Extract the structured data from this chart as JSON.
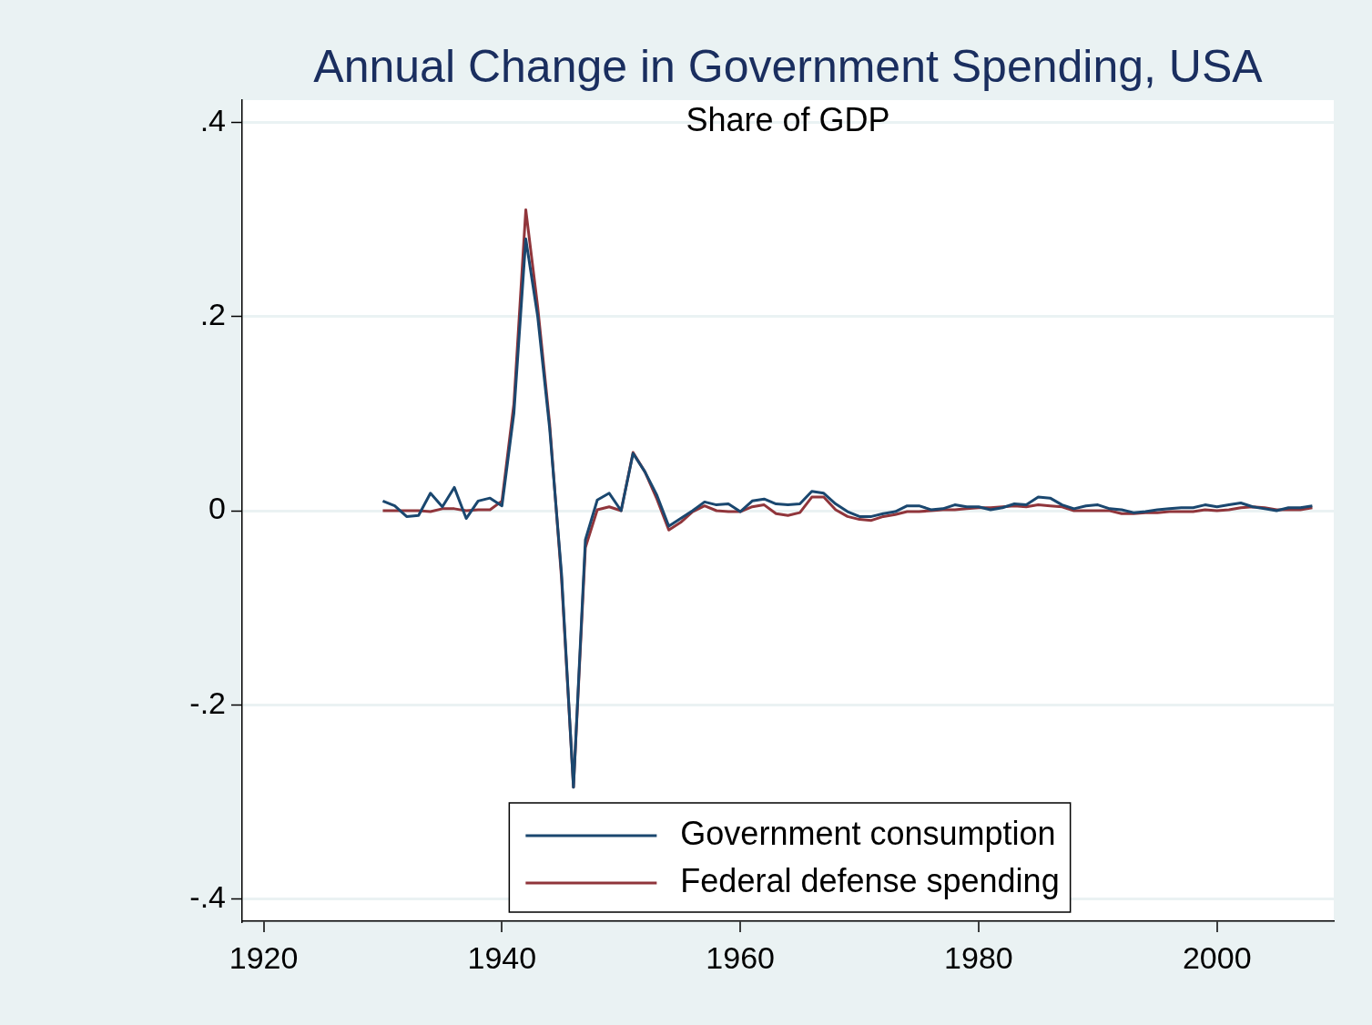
{
  "chart_data": {
    "type": "line",
    "title": "Annual Change in Government Spending, USA",
    "subtitle": "Share of GDP",
    "x": [
      1930,
      1931,
      1932,
      1933,
      1934,
      1935,
      1936,
      1937,
      1938,
      1939,
      1940,
      1941,
      1942,
      1943,
      1944,
      1945,
      1946,
      1947,
      1948,
      1949,
      1950,
      1951,
      1952,
      1953,
      1954,
      1955,
      1956,
      1957,
      1958,
      1959,
      1960,
      1961,
      1962,
      1963,
      1964,
      1965,
      1966,
      1967,
      1968,
      1969,
      1970,
      1971,
      1972,
      1973,
      1974,
      1975,
      1976,
      1977,
      1978,
      1979,
      1980,
      1981,
      1982,
      1983,
      1984,
      1985,
      1986,
      1987,
      1988,
      1989,
      1990,
      1991,
      1992,
      1993,
      1994,
      1995,
      1996,
      1997,
      1998,
      1999,
      2000,
      2001,
      2002,
      2003,
      2004,
      2005,
      2006,
      2007,
      2008
    ],
    "series": [
      {
        "name": "Government consumption",
        "color": "#1a476f",
        "values": [
          0.01,
          0.005,
          -0.006,
          -0.005,
          0.018,
          0.004,
          0.024,
          -0.008,
          0.01,
          0.013,
          0.005,
          0.1,
          0.28,
          0.2,
          0.085,
          -0.065,
          -0.285,
          -0.03,
          0.011,
          0.018,
          0,
          0.059,
          0.04,
          0.016,
          -0.016,
          -0.008,
          0,
          0.009,
          0.006,
          0.007,
          -0.001,
          0.01,
          0.012,
          0.007,
          0.006,
          0.007,
          0.02,
          0.018,
          0.007,
          -0.001,
          -0.006,
          -0.006,
          -0.003,
          -0.001,
          0.005,
          0.005,
          0.001,
          0.002,
          0.006,
          0.004,
          0.004,
          0.001,
          0.003,
          0.007,
          0.006,
          0.014,
          0.013,
          0.006,
          0.002,
          0.005,
          0.006,
          0.002,
          0.001,
          -0.002,
          -0.001,
          0.001,
          0.002,
          0.003,
          0.003,
          0.006,
          0.004,
          0.006,
          0.008,
          0.004,
          0.002,
          0,
          0.003,
          0.003,
          0.005
        ]
      },
      {
        "name": "Federal defense spending",
        "color": "#90353b",
        "values": [
          0,
          0,
          0,
          0,
          -0.001,
          0.002,
          0.002,
          0,
          0.001,
          0.001,
          0.01,
          0.11,
          0.31,
          0.21,
          0.09,
          -0.07,
          -0.285,
          -0.038,
          0.001,
          0.004,
          0,
          0.06,
          0.04,
          0.012,
          -0.02,
          -0.012,
          -0.001,
          0.005,
          0,
          -0.001,
          -0.001,
          0.004,
          0.006,
          -0.003,
          -0.005,
          -0.002,
          0.014,
          0.014,
          0.001,
          -0.006,
          -0.009,
          -0.01,
          -0.006,
          -0.004,
          -0.001,
          -0.001,
          0,
          0.001,
          0.001,
          0.002,
          0.003,
          0.003,
          0.004,
          0.005,
          0.004,
          0.006,
          0.005,
          0.004,
          0,
          0,
          0,
          0,
          -0.003,
          -0.003,
          -0.002,
          -0.002,
          -0.001,
          -0.001,
          -0.001,
          0.001,
          0,
          0.001,
          0.003,
          0.004,
          0.003,
          0.001,
          0.001,
          0.001,
          0.003
        ]
      }
    ],
    "xlim": [
      1918.2,
      2009.8
    ],
    "xticks": [
      1920,
      1940,
      1960,
      1980,
      2000
    ],
    "ylim": [
      -0.423,
      0.423
    ],
    "yticks": [
      {
        "value": 0.4,
        "label": ".4"
      },
      {
        "value": 0.2,
        "label": ".2"
      },
      0,
      {
        "value": -0.2,
        "label": "-.2"
      },
      {
        "value": -0.4,
        "label": "-.4"
      }
    ],
    "grid": "y",
    "legend": "bottom",
    "marker": "none",
    "line_style": "solid"
  }
}
